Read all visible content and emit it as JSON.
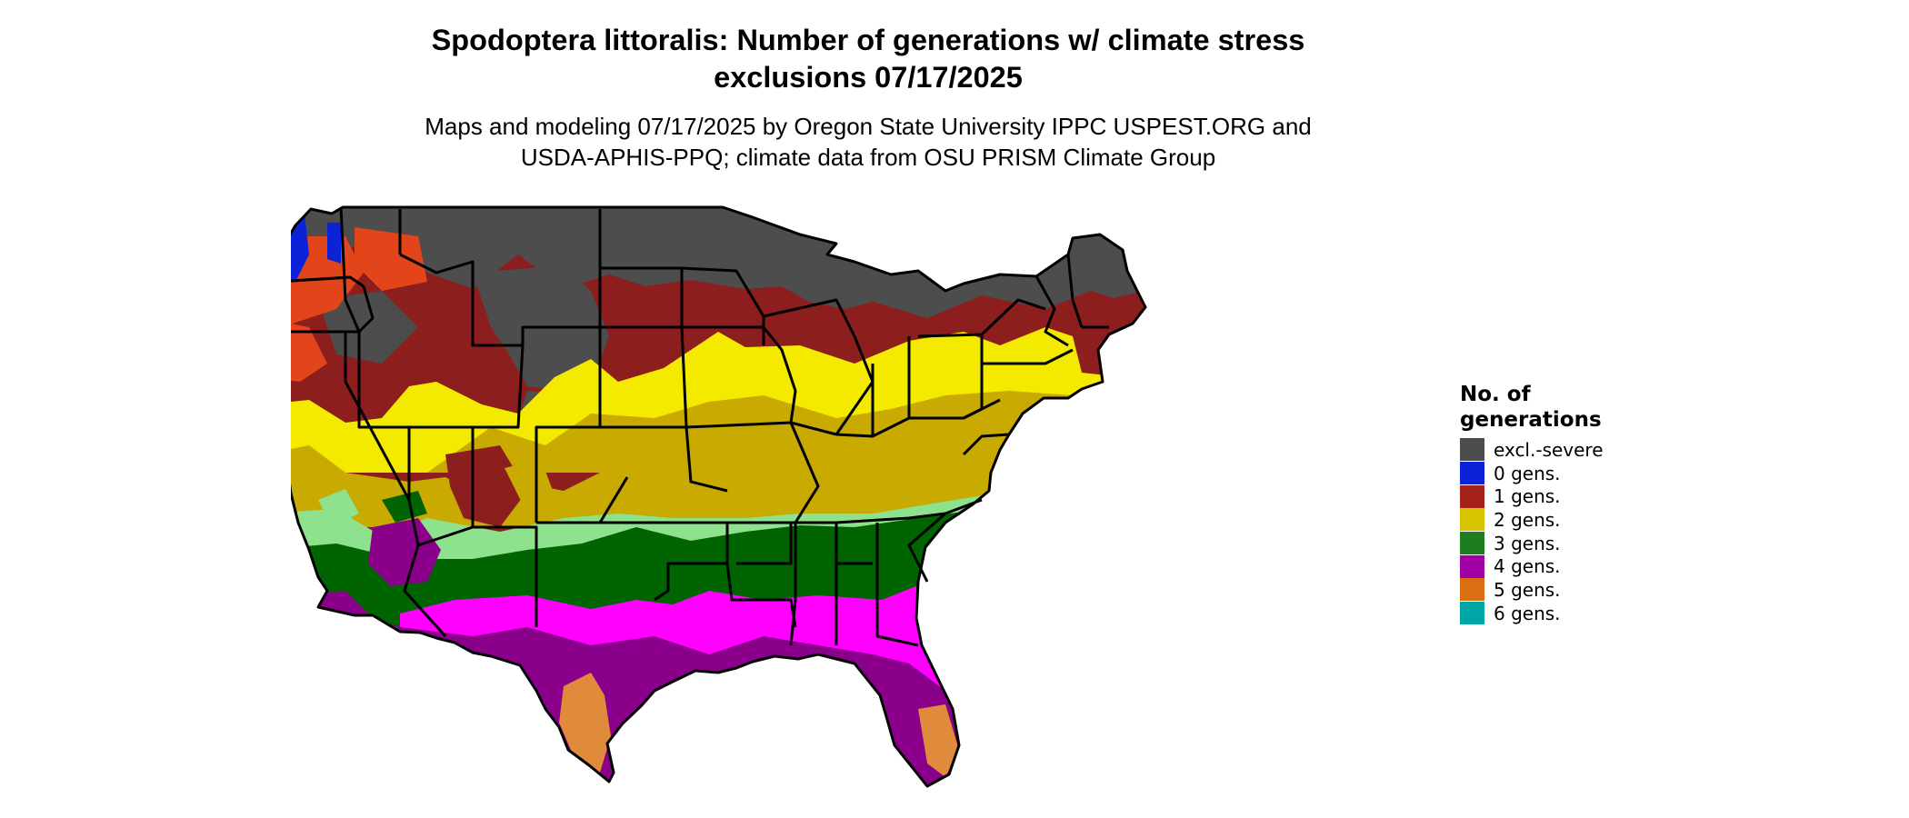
{
  "header": {
    "title": "Spodoptera littoralis: Number of generations w/ climate stress\nexclusions 07/17/2025",
    "subtitle": "Maps and modeling 07/17/2025 by Oregon State University IPPC USPEST.ORG and\nUSDA-APHIS-PPQ; climate data from OSU PRISM Climate Group"
  },
  "map": {
    "region": "Contiguous United States",
    "zone_colors": {
      "excl_severe": "#4d4d4d",
      "gen0": "#0b22d6",
      "gen1": "#8c1e1e",
      "gen1_light": "#e2451a",
      "gen2": "#c9aa00",
      "gen2_light": "#f4ea00",
      "gen3": "#006400",
      "gen3_light": "#8ee28e",
      "gen4": "#8b008b",
      "gen4_light": "#ff00ff",
      "gen5": "#e08a3c",
      "gen6": "#00a5a5"
    }
  },
  "legend": {
    "title": "No. of\ngenerations",
    "items": [
      {
        "label": "excl.-severe",
        "color": "#4d4d4d"
      },
      {
        "label": "0 gens.",
        "color": "#0b22d6"
      },
      {
        "label": "1 gens.",
        "color": "#a52218"
      },
      {
        "label": "2 gens.",
        "color": "#d8c400"
      },
      {
        "label": "3 gens.",
        "color": "#1e7d1e"
      },
      {
        "label": "4 gens.",
        "color": "#a000a5"
      },
      {
        "label": "5 gens.",
        "color": "#db6e14"
      },
      {
        "label": "6 gens.",
        "color": "#00a5a5"
      }
    ]
  }
}
